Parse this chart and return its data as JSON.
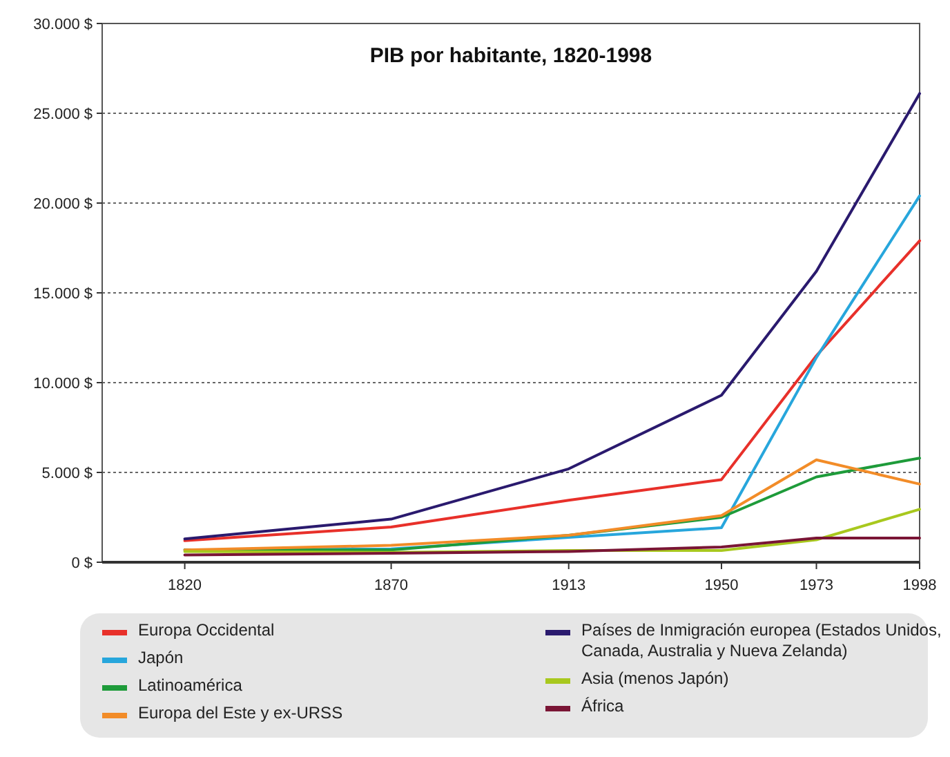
{
  "chart_data": {
    "type": "line",
    "title": "PIB por habitante, 1820-1998",
    "x": [
      1820,
      1870,
      1913,
      1950,
      1973,
      1998
    ],
    "xlim": [
      1800,
      1998
    ],
    "xticks": [
      1820,
      1870,
      1913,
      1950,
      1973,
      1998
    ],
    "ylim": [
      0,
      30000
    ],
    "yticks": [
      {
        "value": 0,
        "label": "0 $"
      },
      {
        "value": 5000,
        "label": "5.000 $"
      },
      {
        "value": 10000,
        "label": "10.000 $"
      },
      {
        "value": 15000,
        "label": "15.000 $"
      },
      {
        "value": 20000,
        "label": "20.000 $"
      },
      {
        "value": 25000,
        "label": "25.000 $"
      },
      {
        "value": 30000,
        "label": "30.000 $"
      }
    ],
    "grid": "y",
    "legend": "bottom",
    "marker": "none",
    "line_style": "solid",
    "series": [
      {
        "name": "Europa Occidental",
        "color": "#e8302a",
        "values": [
          1200,
          1960,
          3450,
          4600,
          11500,
          17900
        ]
      },
      {
        "name": "Japón",
        "color": "#27a6dc",
        "values": [
          670,
          740,
          1380,
          1920,
          11400,
          20400
        ]
      },
      {
        "name": "Latinoamérica",
        "color": "#1e9b3a",
        "values": [
          690,
          680,
          1500,
          2500,
          4750,
          5800
        ]
      },
      {
        "name": "Europa del Este y ex-URSS",
        "color": "#f28c28",
        "values": [
          680,
          940,
          1500,
          2600,
          5700,
          4350
        ]
      },
      {
        "name": "Países de Inmigración europea (Estados Unidos, Canada, Australia y Nueva Zelanda)",
        "color": "#2a1a6e",
        "values": [
          1300,
          2400,
          5200,
          9300,
          16200,
          26100
        ]
      },
      {
        "name": "Asia (menos Japón)",
        "color": "#a8c81e",
        "values": [
          600,
          550,
          650,
          650,
          1250,
          2950
        ]
      },
      {
        "name": "África",
        "color": "#7a1535",
        "values": [
          400,
          500,
          600,
          850,
          1350,
          1350
        ]
      }
    ]
  }
}
